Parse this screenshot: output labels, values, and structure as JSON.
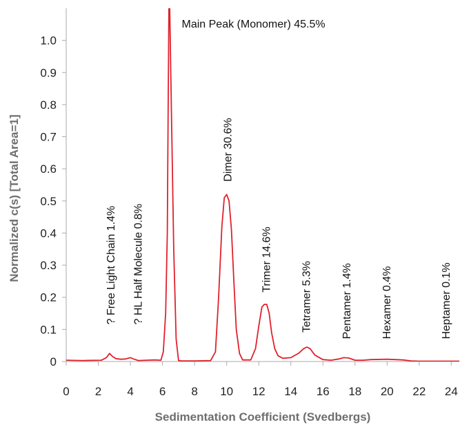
{
  "chart_data": {
    "type": "line",
    "title": "",
    "xlabel": "Sedimentation Coefficient (Svedbergs)",
    "ylabel": "Normalized c(s) [Total Area=1]",
    "xlim": [
      0,
      24.5
    ],
    "ylim": [
      0,
      1.1
    ],
    "x_ticks": [
      0,
      2,
      4,
      6,
      8,
      10,
      12,
      14,
      16,
      18,
      20,
      22,
      24
    ],
    "x_tick_labels": [
      "0",
      "2",
      "4",
      "6",
      "8",
      "10",
      "12",
      "14",
      "16",
      "18",
      "20",
      "22",
      "24"
    ],
    "y_ticks": [
      0,
      0.1,
      0.2,
      0.3,
      0.4,
      0.5,
      0.6,
      0.7,
      0.8,
      0.9,
      1.0
    ],
    "y_tick_labels": [
      "0",
      "0.1",
      "0.2",
      "0.3",
      "0.4",
      "0.5",
      "0.6",
      "0.7",
      "0.8",
      "0.9",
      "1.0"
    ],
    "grid": false,
    "line_color": "#e0202a",
    "axis_color": "#aaaaaa",
    "series": [
      {
        "x": [
          0,
          1.0,
          2.2,
          2.5,
          2.7,
          2.9,
          3.1,
          3.4,
          3.7,
          4.0,
          4.2,
          4.5,
          5.0,
          5.5,
          5.9,
          6.05,
          6.2,
          6.3,
          6.35,
          6.4,
          6.45,
          6.55,
          6.7,
          6.85,
          7.0,
          7.2,
          8.0,
          9.0,
          9.3,
          9.5,
          9.7,
          9.85,
          10.0,
          10.15,
          10.3,
          10.45,
          10.6,
          10.8,
          11.0,
          11.5,
          11.8,
          12.0,
          12.2,
          12.35,
          12.5,
          12.65,
          12.8,
          13.0,
          13.2,
          13.5,
          14.0,
          14.5,
          14.8,
          15.0,
          15.2,
          15.5,
          16.0,
          16.5,
          17.0,
          17.3,
          17.6,
          18.0,
          18.5,
          19.0,
          20.0,
          21.0,
          21.5,
          22.0,
          23.0,
          24.5
        ],
        "y": [
          0.004,
          0.003,
          0.004,
          0.012,
          0.025,
          0.015,
          0.009,
          0.007,
          0.008,
          0.012,
          0.008,
          0.003,
          0.004,
          0.005,
          0.004,
          0.03,
          0.15,
          0.4,
          0.75,
          1.1,
          1.1,
          0.8,
          0.35,
          0.07,
          0.003,
          0.002,
          0.002,
          0.003,
          0.03,
          0.2,
          0.42,
          0.51,
          0.52,
          0.5,
          0.41,
          0.25,
          0.1,
          0.025,
          0.005,
          0.005,
          0.04,
          0.11,
          0.17,
          0.178,
          0.178,
          0.15,
          0.09,
          0.04,
          0.018,
          0.01,
          0.012,
          0.026,
          0.04,
          0.045,
          0.04,
          0.02,
          0.006,
          0.004,
          0.008,
          0.012,
          0.011,
          0.004,
          0.004,
          0.006,
          0.007,
          0.005,
          0.002,
          0.001,
          0.001,
          0.001
        ]
      }
    ],
    "annotations": [
      {
        "text": "? Free Light Chain 1.4%",
        "x": 3.0,
        "y": 0.115,
        "rotation": -90
      },
      {
        "text": "? HL Half Molecule 0.8%",
        "x": 4.7,
        "y": 0.115,
        "rotation": -90
      },
      {
        "text": "Main Peak (Monomer) 45.5%",
        "x": 7.2,
        "y": 1.04,
        "rotation": 0
      },
      {
        "text": "Dimer 30.6%",
        "x": 10.3,
        "y": 0.56,
        "rotation": -90
      },
      {
        "text": "Trimer 14.6%",
        "x": 12.7,
        "y": 0.215,
        "rotation": -90
      },
      {
        "text": "Tetramer 5.3%",
        "x": 15.2,
        "y": 0.09,
        "rotation": -90
      },
      {
        "text": "Pentamer 1.4%",
        "x": 17.7,
        "y": 0.07,
        "rotation": -90
      },
      {
        "text": "Hexamer 0.4%",
        "x": 20.2,
        "y": 0.07,
        "rotation": -90
      },
      {
        "text": "Heptamer 0.1%",
        "x": 23.9,
        "y": 0.07,
        "rotation": -90
      }
    ]
  }
}
